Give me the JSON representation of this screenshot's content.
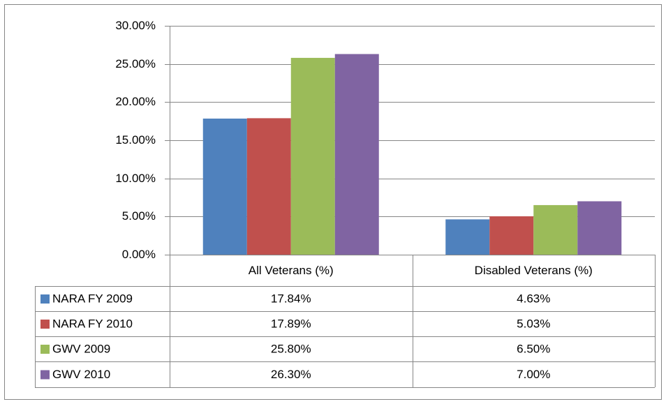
{
  "chart_data": {
    "type": "bar",
    "categories": [
      "All Veterans (%)",
      "Disabled Veterans (%)"
    ],
    "series": [
      {
        "name": "NARA FY 2009",
        "color": "#4f81bd",
        "values": [
          17.84,
          4.63
        ],
        "value_labels": [
          "17.84%",
          "4.63%"
        ]
      },
      {
        "name": "NARA FY 2010",
        "color": "#c0504d",
        "values": [
          17.89,
          5.03
        ],
        "value_labels": [
          "17.89%",
          "5.03%"
        ]
      },
      {
        "name": "GWV 2009",
        "color": "#9bbb59",
        "values": [
          25.8,
          6.5
        ],
        "value_labels": [
          "25.80%",
          "6.50%"
        ]
      },
      {
        "name": "GWV 2010",
        "color": "#8064a2",
        "values": [
          26.3,
          7.0
        ],
        "value_labels": [
          "26.30%",
          "7.00%"
        ]
      }
    ],
    "ylim": [
      0,
      30
    ],
    "yticks": [
      {
        "value": 0,
        "label": "0.00%"
      },
      {
        "value": 5,
        "label": "5.00%"
      },
      {
        "value": 10,
        "label": "10.00%"
      },
      {
        "value": 15,
        "label": "15.00%"
      },
      {
        "value": 20,
        "label": "20.00%"
      },
      {
        "value": 25,
        "label": "25.00%"
      },
      {
        "value": 30,
        "label": "30.00%"
      }
    ],
    "grid": true
  }
}
